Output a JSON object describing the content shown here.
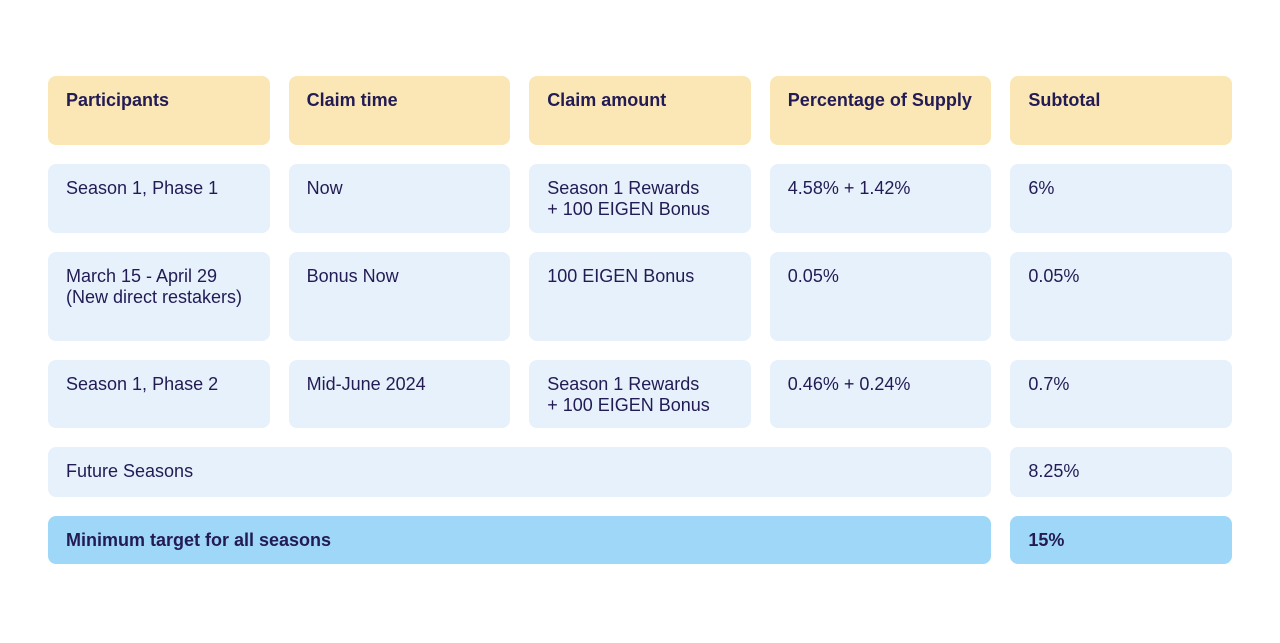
{
  "table": {
    "headers": {
      "participants": "Participants",
      "claim_time": "Claim time",
      "claim_amount": "Claim amount",
      "percentage_of_supply": "Percentage of Supply",
      "subtotal": "Subtotal"
    },
    "rows": [
      {
        "participants": "Season 1, Phase 1",
        "claim_time": "Now",
        "claim_amount": "Season 1 Rewards\n+ 100 EIGEN Bonus",
        "percentage_of_supply": "4.58% + 1.42%",
        "subtotal": "6%"
      },
      {
        "participants": "March 15 - April 29 (New direct restakers)",
        "claim_time": "Bonus Now",
        "claim_amount": "100 EIGEN Bonus",
        "percentage_of_supply": "0.05%",
        "subtotal": "0.05%"
      },
      {
        "participants": "Season 1, Phase 2",
        "claim_time": "Mid-June 2024",
        "claim_amount": "Season 1 Rewards\n+ 100 EIGEN Bonus",
        "percentage_of_supply": "0.46% + 0.24%",
        "subtotal": "0.7%"
      }
    ],
    "future_row": {
      "label": "Future Seasons",
      "subtotal": "8.25%"
    },
    "total_row": {
      "label": "Minimum target for all seasons",
      "subtotal": "15%"
    }
  },
  "colors": {
    "header_bg": "#FBE7B6",
    "cell_bg": "#E6F1FC",
    "total_bg": "#9FD7F8",
    "text": "#221B54",
    "page_bg": "#FFFFFF"
  }
}
